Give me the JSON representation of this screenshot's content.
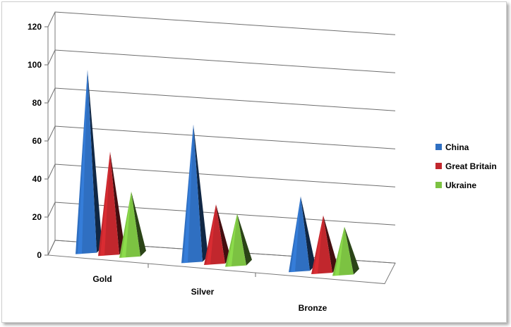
{
  "chart_data": {
    "type": "bar",
    "title": "",
    "xlabel": "",
    "ylabel": "",
    "ylim": [
      0,
      120
    ],
    "yticks": [
      0,
      20,
      40,
      60,
      80,
      100,
      120
    ],
    "grid": true,
    "legend_position": "right",
    "categories": [
      "Gold",
      "Silver",
      "Bronze"
    ],
    "series": [
      {
        "name": "China",
        "values": [
          95,
          71,
          38
        ],
        "color": "#2f6fc1"
      },
      {
        "name": "Great Britain",
        "values": [
          53,
          30,
          29
        ],
        "color": "#c1272d"
      },
      {
        "name": "Ukraine",
        "values": [
          33,
          26,
          24
        ],
        "color": "#7cc242"
      }
    ]
  }
}
